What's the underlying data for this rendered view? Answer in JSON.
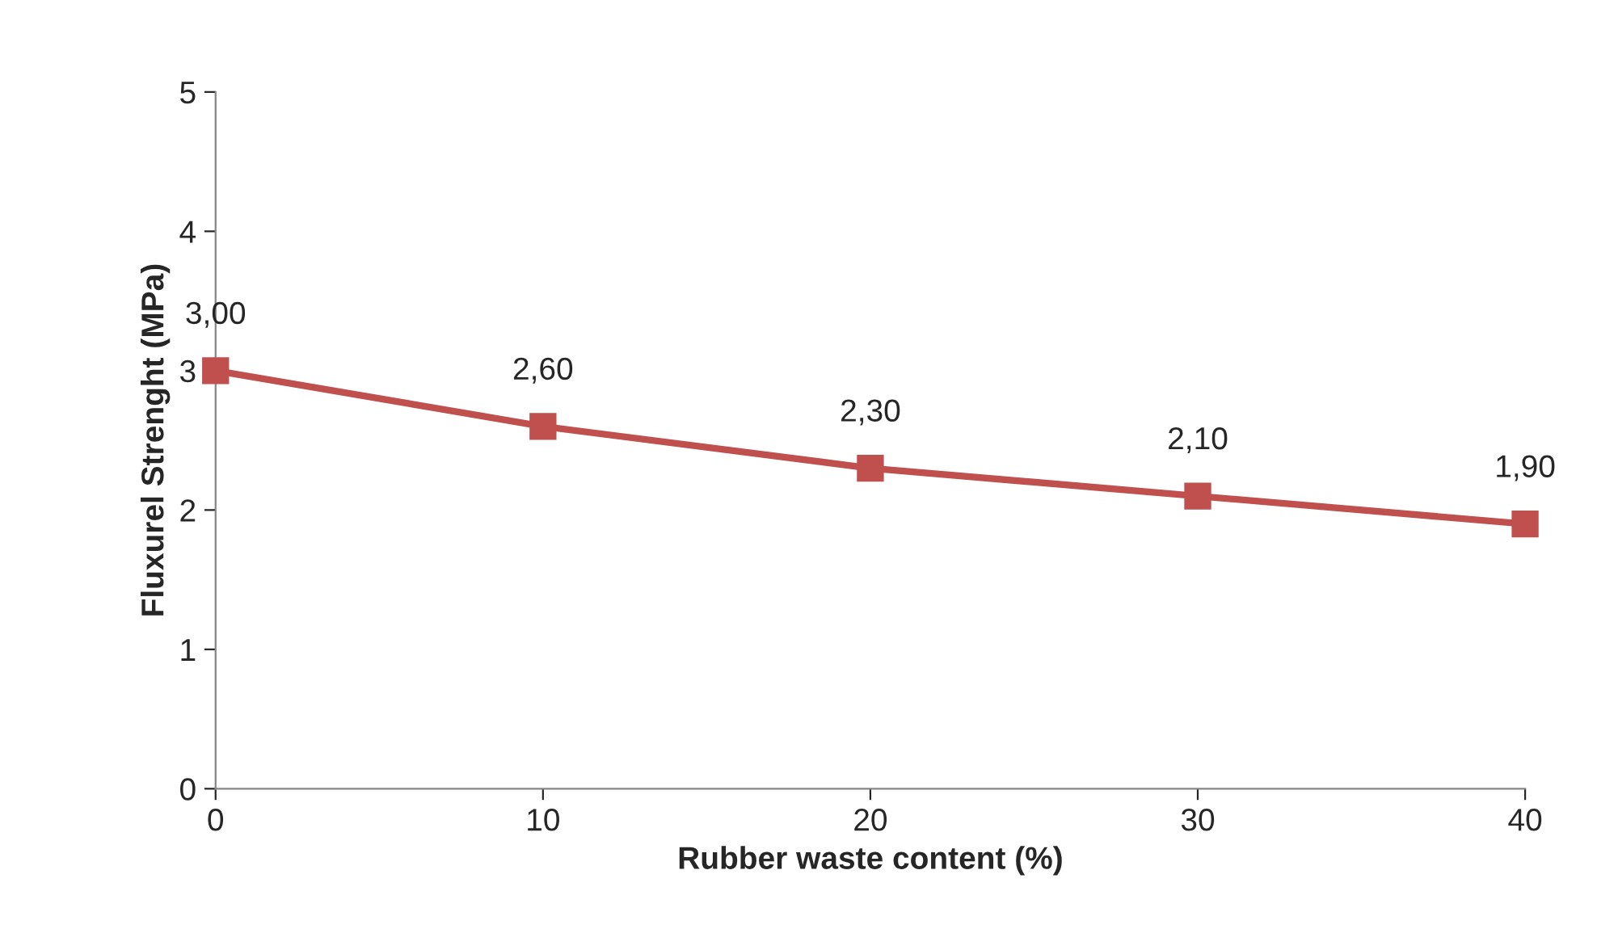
{
  "chart_data": {
    "type": "line",
    "xlabel": "Rubber waste content (%)",
    "ylabel": "Fluxurel Strenght (MPa)",
    "x": [
      0,
      10,
      20,
      30,
      40
    ],
    "series": [
      {
        "color": "#c0504d",
        "values": [
          3.0,
          2.6,
          2.3,
          2.1,
          1.9
        ],
        "value_labels": [
          "3,00",
          "2,60",
          "2,30",
          "2,10",
          "1,90"
        ]
      }
    ],
    "xlim": [
      0,
      40
    ],
    "xticks": [
      0,
      10,
      20,
      30,
      40
    ],
    "ylim": [
      0,
      5
    ],
    "yticks": [
      0,
      1,
      2,
      3,
      4,
      5
    ],
    "marker": "square",
    "line_style": "solid",
    "grid": false,
    "legend": false
  }
}
